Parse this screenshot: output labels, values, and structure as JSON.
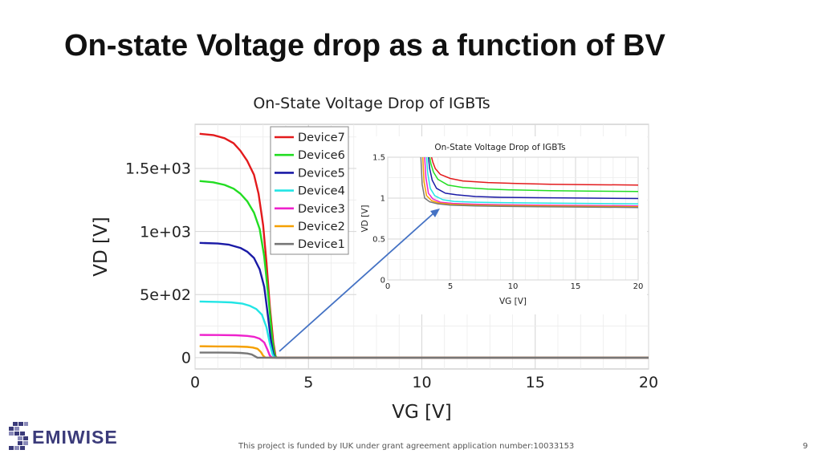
{
  "slide": {
    "title": "On-state Voltage drop as a function of BV",
    "footer": "This project is funded by IUK under grant agreement application number:10033153",
    "page_number": "9",
    "logo_text": "EMIWISE"
  },
  "chart_data": [
    {
      "type": "line",
      "title": "On-State Voltage Drop of IGBTs",
      "xlabel": "VG [V]",
      "ylabel": "VD [V]",
      "xlim": [
        0,
        20
      ],
      "ylim": [
        -90,
        1850
      ],
      "x_ticks": [
        0,
        5,
        10,
        15,
        20
      ],
      "x_tick_labels": [
        "0",
        "5",
        "10",
        "15",
        "20"
      ],
      "y_ticks": [
        0,
        500,
        1000,
        1500
      ],
      "y_tick_labels": [
        "0",
        "5e+02",
        "1e+03",
        "1.5e+03"
      ],
      "grid": true,
      "legend": "top-left",
      "series": [
        {
          "name": "Device7",
          "color": "#e31a1c",
          "x": [
            0.2,
            0.8,
            1.3,
            1.7,
            2.0,
            2.3,
            2.6,
            2.8,
            3.0,
            3.15,
            3.3,
            3.45,
            3.55,
            3.62,
            20
          ],
          "y": [
            1775,
            1765,
            1740,
            1700,
            1640,
            1560,
            1450,
            1300,
            1050,
            750,
            400,
            120,
            10,
            0,
            0
          ]
        },
        {
          "name": "Device6",
          "color": "#22dd22",
          "x": [
            0.2,
            0.8,
            1.3,
            1.7,
            2.0,
            2.3,
            2.6,
            2.85,
            3.05,
            3.25,
            3.4,
            3.5,
            3.58,
            20
          ],
          "y": [
            1400,
            1390,
            1370,
            1340,
            1300,
            1240,
            1150,
            1020,
            800,
            450,
            150,
            30,
            0,
            0
          ]
        },
        {
          "name": "Device5",
          "color": "#1a1aa6",
          "x": [
            0.2,
            1.0,
            1.5,
            2.0,
            2.3,
            2.6,
            2.85,
            3.05,
            3.2,
            3.35,
            3.45,
            3.53,
            20
          ],
          "y": [
            910,
            905,
            895,
            870,
            840,
            790,
            700,
            560,
            350,
            130,
            30,
            0,
            0
          ]
        },
        {
          "name": "Device4",
          "color": "#22e5e5",
          "x": [
            0.2,
            1.0,
            1.6,
            2.1,
            2.4,
            2.7,
            2.95,
            3.15,
            3.3,
            3.42,
            3.5,
            20
          ],
          "y": [
            445,
            442,
            438,
            428,
            412,
            385,
            340,
            240,
            110,
            25,
            0,
            0
          ]
        },
        {
          "name": "Device3",
          "color": "#ee22cc",
          "x": [
            0.2,
            1.0,
            1.8,
            2.3,
            2.6,
            2.85,
            3.05,
            3.2,
            3.3,
            3.4,
            20
          ],
          "y": [
            180,
            179,
            177,
            172,
            165,
            150,
            120,
            60,
            15,
            0,
            0
          ]
        },
        {
          "name": "Device2",
          "color": "#f5a000",
          "x": [
            0.2,
            1.0,
            1.8,
            2.3,
            2.55,
            2.75,
            2.9,
            3.0,
            3.1,
            20
          ],
          "y": [
            90,
            89,
            88,
            85,
            80,
            70,
            45,
            15,
            0,
            0
          ]
        },
        {
          "name": "Device1",
          "color": "#777777",
          "x": [
            0.2,
            1.0,
            1.6,
            2.0,
            2.3,
            2.5,
            2.65,
            2.75,
            20
          ],
          "y": [
            40,
            40,
            39,
            37,
            33,
            25,
            10,
            0,
            0
          ]
        }
      ]
    },
    {
      "type": "line",
      "title": "On-State Voltage Drop of IGBTs",
      "xlabel": "VG [V]",
      "ylabel": "VD [V]",
      "xlim": [
        0,
        20
      ],
      "ylim": [
        0,
        1.5
      ],
      "x_ticks": [
        0,
        5,
        10,
        15,
        20
      ],
      "x_tick_labels": [
        "0",
        "5",
        "10",
        "15",
        "20"
      ],
      "y_ticks": [
        0,
        0.5,
        1,
        1.5
      ],
      "y_tick_labels": [
        "0",
        "0.5",
        "1",
        "1.5"
      ],
      "grid": true,
      "series": [
        {
          "name": "Device7",
          "color": "#e31a1c",
          "x": [
            3.5,
            3.6,
            3.8,
            4.2,
            5,
            6,
            8,
            10,
            13,
            16,
            20
          ],
          "y": [
            1.5,
            1.44,
            1.36,
            1.29,
            1.24,
            1.21,
            1.19,
            1.18,
            1.17,
            1.165,
            1.16
          ]
        },
        {
          "name": "Device6",
          "color": "#22dd22",
          "x": [
            3.35,
            3.45,
            3.65,
            4.0,
            4.8,
            6,
            8,
            10,
            13,
            16,
            20
          ],
          "y": [
            1.5,
            1.42,
            1.32,
            1.23,
            1.16,
            1.13,
            1.11,
            1.1,
            1.09,
            1.085,
            1.08
          ]
        },
        {
          "name": "Device5",
          "color": "#1a1aa6",
          "x": [
            3.25,
            3.35,
            3.55,
            3.9,
            4.6,
            5.5,
            7,
            9,
            12,
            16,
            20
          ],
          "y": [
            1.5,
            1.36,
            1.22,
            1.12,
            1.06,
            1.04,
            1.02,
            1.01,
            1.005,
            1.0,
            0.995
          ]
        },
        {
          "name": "Device4",
          "color": "#22e5e5",
          "x": [
            3.1,
            3.2,
            3.4,
            3.75,
            4.4,
            5.3,
            7,
            9,
            12,
            16,
            20
          ],
          "y": [
            1.5,
            1.3,
            1.12,
            1.03,
            0.98,
            0.96,
            0.95,
            0.945,
            0.94,
            0.935,
            0.93
          ]
        },
        {
          "name": "Device3",
          "color": "#ee22cc",
          "x": [
            2.95,
            3.05,
            3.25,
            3.6,
            4.2,
            5.2,
            7,
            9,
            12,
            16,
            20
          ],
          "y": [
            1.5,
            1.25,
            1.06,
            0.99,
            0.95,
            0.935,
            0.925,
            0.92,
            0.915,
            0.91,
            0.905
          ]
        },
        {
          "name": "Device2",
          "color": "#f5a000",
          "x": [
            2.8,
            2.9,
            3.1,
            3.5,
            4.1,
            5.1,
            7,
            9,
            12,
            16,
            20
          ],
          "y": [
            1.5,
            1.2,
            1.03,
            0.97,
            0.94,
            0.925,
            0.915,
            0.91,
            0.905,
            0.9,
            0.895
          ]
        },
        {
          "name": "Device1",
          "color": "#777777",
          "x": [
            2.65,
            2.75,
            2.95,
            3.35,
            4.0,
            5.0,
            7,
            9,
            12,
            16,
            20
          ],
          "y": [
            1.5,
            1.17,
            1.0,
            0.955,
            0.93,
            0.915,
            0.905,
            0.9,
            0.895,
            0.89,
            0.885
          ]
        }
      ]
    }
  ]
}
